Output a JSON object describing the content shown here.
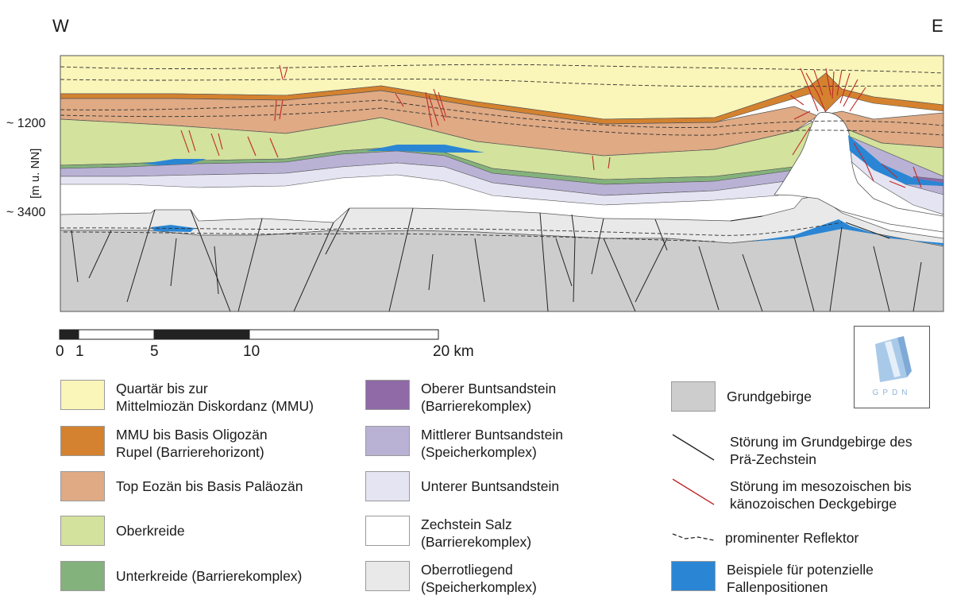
{
  "orientation": {
    "west": "W",
    "east": "E"
  },
  "depth_axis": {
    "title": "[m u. NN]",
    "ticks": [
      "~ 1200",
      "~ 3400"
    ]
  },
  "scale_bar": {
    "labels": [
      "0",
      "1",
      "5",
      "10",
      "20 km"
    ]
  },
  "logo": {
    "text": "GPDN"
  },
  "colors": {
    "quartaer": "#faf5b8",
    "mmu": "#d4822f",
    "eozaen": "#dfaa84",
    "oberkreide": "#d3e29c",
    "unterkreide": "#84b27c",
    "oberer_bunt": "#8f6aa6",
    "mittlerer_bunt": "#b9b2d5",
    "unterer_bunt": "#e5e4f2",
    "zechstein": "#ffffff",
    "oberrotliegend": "#e9e9e9",
    "grundgebirge": "#cdcdcd",
    "fallen": "#2a86d4",
    "stoerung_meso": "#c0282a",
    "stoerung_grund": "#222222"
  },
  "legend": {
    "col1": [
      {
        "label": "Quartär bis zur\nMittelmiozän Diskordanz (MMU)",
        "color": "#faf5b8"
      },
      {
        "label": "MMU bis Basis Oligozän\nRupel (Barrierehorizont)",
        "color": "#d4822f"
      },
      {
        "label": "Top Eozän bis Basis Paläozän",
        "color": "#dfaa84"
      },
      {
        "label": "Oberkreide",
        "color": "#d3e29c"
      },
      {
        "label": "Unterkreide (Barrierekomplex)",
        "color": "#84b27c"
      }
    ],
    "col2": [
      {
        "label": "Oberer Buntsandstein\n(Barrierekomplex)",
        "color": "#8f6aa6"
      },
      {
        "label": "Mittlerer Buntsandstein\n(Speicherkomplex)",
        "color": "#b9b2d5"
      },
      {
        "label": "Unterer Buntsandstein",
        "color": "#e5e4f2"
      },
      {
        "label": "Zechstein Salz\n(Barrierekomplex)",
        "color": "#ffffff"
      },
      {
        "label": "Oberrotliegend\n(Speicherkomplex)",
        "color": "#e9e9e9"
      }
    ],
    "col3": [
      {
        "label": "Grundgebirge",
        "kind": "swatch",
        "color": "#cdcdcd"
      },
      {
        "label": "Störung im Grundgebirge des\nPrä-Zechstein",
        "kind": "line-black"
      },
      {
        "label": "Störung im mesozoischen bis\nkänozoischen Deckgebirge",
        "kind": "line-red"
      },
      {
        "label": "prominenter Reflektor",
        "kind": "line-dashed"
      },
      {
        "label": "Beispiele für potenzielle\nFallenpositionen",
        "kind": "swatch",
        "color": "#2a86d4"
      }
    ]
  }
}
